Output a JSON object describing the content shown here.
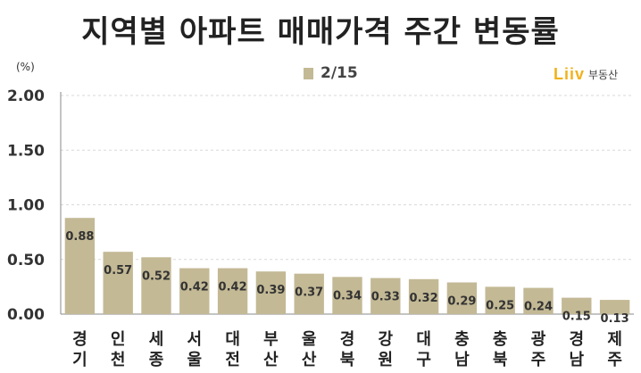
{
  "title": "지역별 아파트 매매가격 주간 변동률",
  "unit": "(%)",
  "legend": {
    "label": "2/15"
  },
  "brand": {
    "mark": "Liiv",
    "text": "부동산"
  },
  "colors": {
    "bar": "#c3b995",
    "grid": "#d9d9d9",
    "axis": "#888888",
    "text": "#333333"
  },
  "chart_data": {
    "type": "bar",
    "categories": [
      "경기",
      "인천",
      "세종",
      "서울",
      "대전",
      "부산",
      "울산",
      "경북",
      "강원",
      "대구",
      "충남",
      "충북",
      "광주",
      "경남",
      "제주"
    ],
    "category_lines": [
      [
        "경",
        "기"
      ],
      [
        "인",
        "천"
      ],
      [
        "세",
        "종"
      ],
      [
        "서",
        "울"
      ],
      [
        "대",
        "전"
      ],
      [
        "부",
        "산"
      ],
      [
        "울",
        "산"
      ],
      [
        "경",
        "북"
      ],
      [
        "강",
        "원"
      ],
      [
        "대",
        "구"
      ],
      [
        "충",
        "남"
      ],
      [
        "충",
        "북"
      ],
      [
        "광",
        "주"
      ],
      [
        "경",
        "남"
      ],
      [
        "제",
        "주"
      ]
    ],
    "series": [
      {
        "name": "2/15",
        "values": [
          0.88,
          0.57,
          0.52,
          0.42,
          0.42,
          0.39,
          0.37,
          0.34,
          0.33,
          0.32,
          0.29,
          0.25,
          0.24,
          0.15,
          0.13
        ]
      }
    ],
    "value_labels": [
      "0.88",
      "0.57",
      "0.52",
      "0.42",
      "0.42",
      "0.39",
      "0.37",
      "0.34",
      "0.33",
      "0.32",
      "0.29",
      "0.25",
      "0.24",
      "0.15",
      "0.13"
    ],
    "yticks": [
      0,
      0.5,
      1.0,
      1.5,
      2.0
    ],
    "ytick_labels": [
      "0.00",
      "0.50",
      "1.00",
      "1.50",
      "2.00"
    ],
    "ylim": [
      0,
      2.0
    ],
    "grid": true,
    "legend_position": "top-center"
  }
}
